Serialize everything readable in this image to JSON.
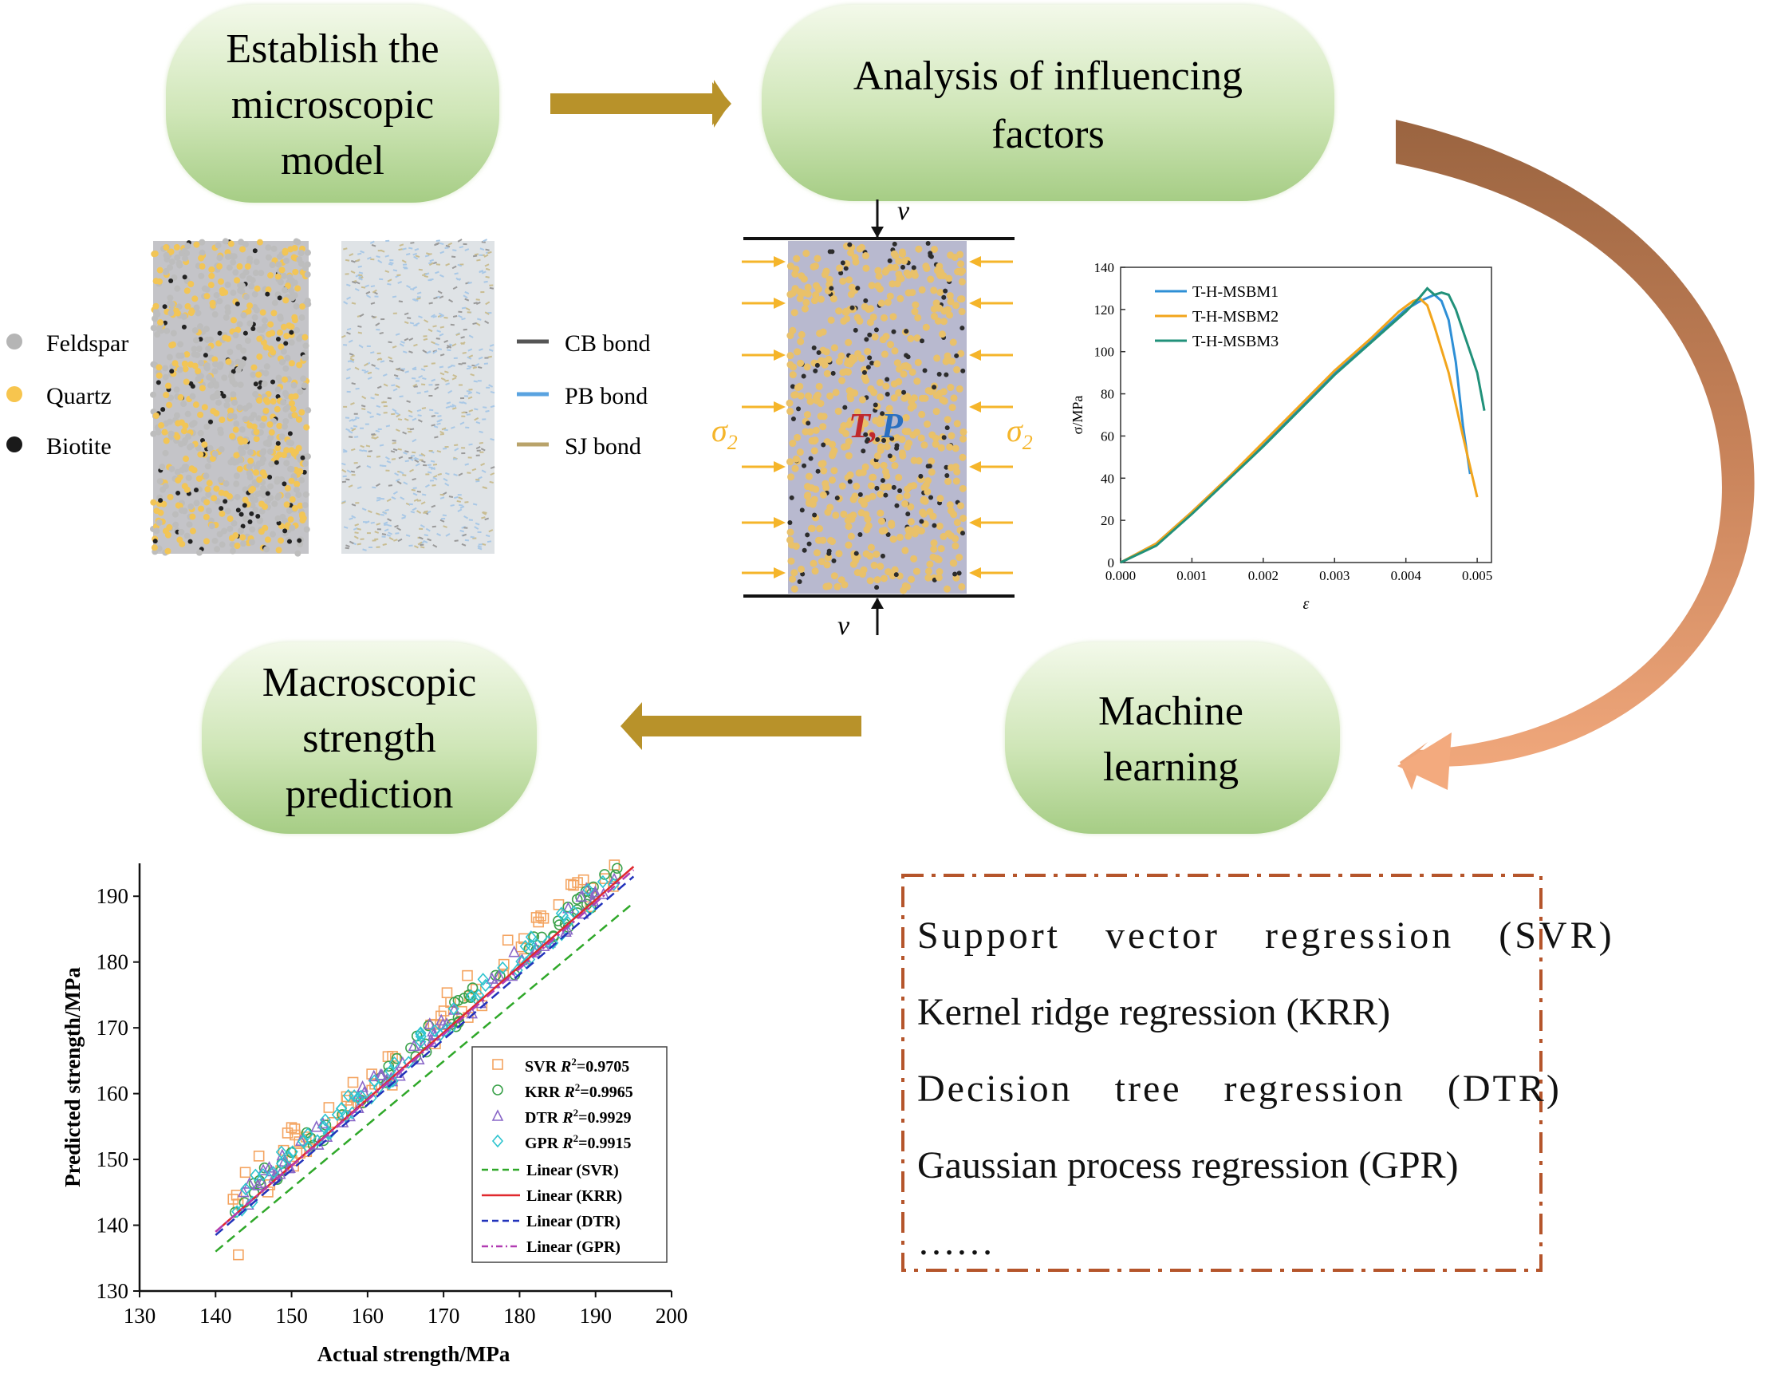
{
  "steps": {
    "establish": [
      "Establish the",
      "microscopic",
      "model"
    ],
    "analysis": [
      "Analysis of influencing",
      "factors"
    ],
    "ml": [
      "Machine",
      "learning"
    ],
    "macro": [
      "Macroscopic",
      "strength",
      "prediction"
    ]
  },
  "legend_minerals": [
    "Feldspar",
    "Quartz",
    "Biotite"
  ],
  "legend_bonds": [
    "CB bond",
    "PB bond",
    "SJ bond"
  ],
  "colors": {
    "feldspar": "#b5b5b5",
    "quartz": "#f7c54e",
    "biotite": "#1a1a1a",
    "cb": "#555555",
    "pb": "#5aa3e0",
    "sj": "#b9a36a",
    "arrow": "#b8922a",
    "pill_top": "#eaf4dc",
    "pill_bot": "#a9cf86",
    "border": "#b5552b",
    "load": "#f5b52a"
  },
  "specimen": {
    "v_top": "v",
    "v_bot": "v",
    "sigma": "σ",
    "sigma_sub": "2",
    "t": "T",
    "comma": ",",
    "p": "P"
  },
  "ml_methods": [
    "Support vector regression (SVR)",
    "Kernel ridge regression (KRR)",
    "Decision tree regression (DTR)",
    "Gaussian process regression (GPR)",
    "……"
  ],
  "chart_data": [
    {
      "type": "line",
      "title": "",
      "xlabel": "ε",
      "ylabel": "σ/MPa",
      "xlim": [
        0.0,
        0.0052
      ],
      "ylim": [
        0,
        140
      ],
      "xticks": [
        "0.000",
        "0.001",
        "0.002",
        "0.003",
        "0.004",
        "0.005"
      ],
      "yticks": [
        "0",
        "20",
        "40",
        "60",
        "80",
        "100",
        "120",
        "140"
      ],
      "legend_position": "top-left",
      "series": [
        {
          "name": "T-H-MSBM1",
          "color": "#2e8fd6",
          "x": [
            0,
            0.0005,
            0.001,
            0.0015,
            0.002,
            0.0025,
            0.003,
            0.0035,
            0.004,
            0.0042,
            0.0044,
            0.0045,
            0.0046,
            0.0047,
            0.0048,
            0.0049
          ],
          "y": [
            0,
            9,
            24,
            40,
            56,
            73,
            90,
            105,
            120,
            124,
            127,
            124,
            115,
            95,
            65,
            42
          ]
        },
        {
          "name": "T-H-MSBM2",
          "color": "#f2a51c",
          "x": [
            0,
            0.0005,
            0.001,
            0.0015,
            0.002,
            0.0025,
            0.003,
            0.0035,
            0.0039,
            0.0041,
            0.0042,
            0.0043,
            0.0044,
            0.0046,
            0.0048,
            0.005
          ],
          "y": [
            0,
            9,
            24,
            40,
            57,
            74,
            91,
            106,
            119,
            124,
            125,
            122,
            112,
            90,
            60,
            31
          ]
        },
        {
          "name": "T-H-MSBM3",
          "color": "#21917a",
          "x": [
            0,
            0.0005,
            0.001,
            0.0015,
            0.002,
            0.0025,
            0.003,
            0.0035,
            0.004,
            0.0042,
            0.0043,
            0.0044,
            0.0045,
            0.0046,
            0.0047,
            0.0048,
            0.0049,
            0.005,
            0.0051
          ],
          "y": [
            0,
            8,
            23,
            39,
            55,
            72,
            89,
            104,
            119,
            126,
            130,
            127,
            128,
            127,
            120,
            110,
            100,
            90,
            72
          ]
        }
      ]
    },
    {
      "type": "scatter",
      "title": "",
      "xlabel": "Actual strength/MPa",
      "ylabel": "Predicted strength/MPa",
      "xlim": [
        130,
        200
      ],
      "ylim": [
        130,
        195
      ],
      "xticks": [
        "130",
        "140",
        "150",
        "160",
        "170",
        "180",
        "190",
        "200"
      ],
      "yticks": [
        "130",
        "140",
        "150",
        "160",
        "170",
        "180",
        "190"
      ],
      "legend_position": "bottom-right",
      "series": [
        {
          "name": "SVR",
          "r2": "=0.9705",
          "marker": "square",
          "color": "#f4a460"
        },
        {
          "name": "KRR",
          "r2": "=0.9965",
          "marker": "circle",
          "color": "#3aa14a"
        },
        {
          "name": "DTR",
          "r2": "=0.9929",
          "marker": "triangle",
          "color": "#8a68c8"
        },
        {
          "name": "GPR",
          "r2": "=0.9915",
          "marker": "diamond",
          "color": "#2ec4cf"
        }
      ],
      "lines": [
        {
          "name": "Linear (SVR)",
          "style": "dashed",
          "color": "#2fa829",
          "x": [
            140,
            195
          ],
          "y": [
            136,
            189
          ]
        },
        {
          "name": "Linear (KRR)",
          "style": "solid",
          "color": "#e0292e",
          "x": [
            140,
            195
          ],
          "y": [
            139,
            194.5
          ]
        },
        {
          "name": "Linear (DTR)",
          "style": "dashed",
          "color": "#2233bb",
          "x": [
            140,
            195
          ],
          "y": [
            138.5,
            193
          ]
        },
        {
          "name": "Linear (GPR)",
          "style": "dashdot",
          "color": "#b23cb2",
          "x": [
            140,
            195
          ],
          "y": [
            139,
            194
          ]
        }
      ],
      "r_label": "R",
      "r_sup": "2"
    }
  ]
}
